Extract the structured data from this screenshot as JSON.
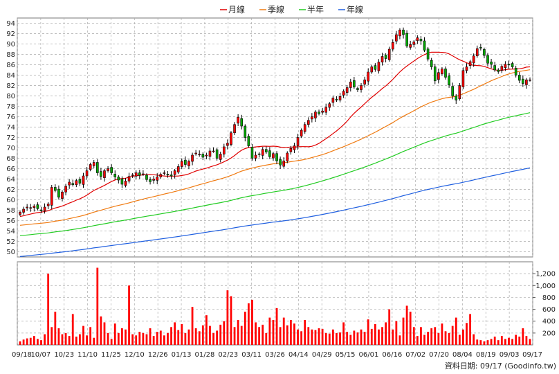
{
  "legend": [
    {
      "name": "月線",
      "color": "#e00000"
    },
    {
      "name": "季線",
      "color": "#f07a10"
    },
    {
      "name": "半年",
      "color": "#22cc22"
    },
    {
      "name": "年線",
      "color": "#1f5fe0"
    }
  ],
  "source_label": "資料日期: 09/17 (Goodinfo.tw)",
  "chart_data": {
    "type": "candlestick",
    "price_axis": {
      "min": 49,
      "max": 95,
      "ticks": [
        50,
        52,
        54,
        56,
        58,
        60,
        62,
        64,
        66,
        68,
        70,
        72,
        74,
        76,
        78,
        80,
        82,
        84,
        86,
        88,
        90,
        92,
        94
      ]
    },
    "volume_axis": {
      "min": 0,
      "max": 1400,
      "ticks": [
        200,
        400,
        600,
        800,
        "1,000",
        "1,200"
      ],
      "tick_values": [
        200,
        400,
        600,
        800,
        1000,
        1200
      ]
    },
    "x_ticks": [
      "09/18",
      "10/07",
      "10/23",
      "11/10",
      "11/25",
      "12/10",
      "12/26",
      "01/13",
      "01/28",
      "02/23",
      "03/11",
      "03/26",
      "04/14",
      "04/29",
      "05/15",
      "06/01",
      "06/16",
      "07/02",
      "07/20",
      "08/04",
      "08/19",
      "09/03",
      "09/17"
    ],
    "price_close": [
      57.6,
      58.2,
      58.6,
      58.5,
      58.8,
      58.3,
      57.9,
      58.6,
      59.2,
      62.4,
      61.8,
      60.5,
      61.5,
      62.6,
      63.4,
      62.9,
      63.7,
      63.2,
      64.6,
      65.6,
      66.8,
      67.2,
      65.2,
      64.5,
      65.6,
      66.0,
      65.2,
      64.4,
      63.8,
      63.0,
      63.6,
      64.5,
      64.8,
      65.2,
      64.7,
      65.0,
      63.9,
      63.5,
      64.0,
      64.4,
      64.9,
      65.2,
      64.8,
      64.6,
      65.6,
      66.4,
      67.4,
      66.8,
      67.4,
      68.6,
      69.0,
      68.8,
      68.2,
      68.6,
      69.4,
      69.4,
      68.0,
      68.8,
      70.2,
      70.9,
      72.9,
      74.5,
      75.9,
      74.2,
      72.0,
      70.4,
      68.0,
      68.6,
      68.8,
      69.7,
      69.2,
      68.3,
      68.9,
      67.5,
      66.7,
      67.5,
      69.0,
      69.9,
      70.4,
      72.0,
      73.4,
      74.5,
      75.3,
      76.0,
      76.9,
      76.6,
      77.1,
      77.8,
      78.5,
      79.6,
      79.2,
      79.9,
      80.9,
      81.6,
      82.7,
      81.7,
      81.2,
      82.0,
      83.1,
      84.6,
      85.6,
      85.1,
      86.5,
      87.6,
      87.2,
      89.0,
      90.3,
      91.8,
      92.7,
      91.8,
      89.6,
      89.9,
      90.4,
      91.2,
      90.6,
      88.8,
      87.1,
      85.6,
      82.9,
      84.5,
      85.2,
      83.6,
      82.1,
      80.0,
      79.2,
      82.0,
      84.9,
      85.6,
      86.6,
      87.7,
      89.1,
      89.2,
      87.8,
      86.3,
      86.1,
      85.0,
      84.7,
      85.7,
      86.1,
      86.0,
      85.6,
      84.0,
      83.0,
      82.4,
      83.1,
      83.1
    ],
    "volume": [
      60,
      90,
      110,
      120,
      150,
      100,
      80,
      180,
      1200,
      300,
      560,
      280,
      180,
      200,
      150,
      520,
      140,
      180,
      320,
      160,
      300,
      120,
      1300,
      480,
      380,
      200,
      100,
      360,
      200,
      280,
      260,
      1000,
      180,
      160,
      220,
      200,
      180,
      280,
      150,
      220,
      240,
      160,
      200,
      300,
      380,
      250,
      350,
      200,
      260,
      640,
      280,
      230,
      330,
      500,
      320,
      200,
      240,
      340,
      400,
      920,
      820,
      300,
      420,
      320,
      560,
      700,
      760,
      380,
      300,
      340,
      200,
      460,
      420,
      620,
      300,
      460,
      330,
      420,
      360,
      260,
      230,
      420,
      300,
      260,
      250,
      280,
      270,
      200,
      190,
      260,
      200,
      210,
      380,
      220,
      170,
      240,
      210,
      260,
      220,
      430,
      270,
      350,
      260,
      300,
      380,
      600,
      260,
      400,
      160,
      460,
      660,
      560,
      300,
      150,
      300,
      170,
      220,
      280,
      300,
      200,
      360,
      230,
      200,
      320,
      460,
      170,
      260,
      370,
      520,
      180,
      90,
      80,
      60,
      80,
      100,
      140,
      80,
      150,
      100,
      120,
      100,
      170,
      140,
      280,
      150,
      100
    ]
  }
}
